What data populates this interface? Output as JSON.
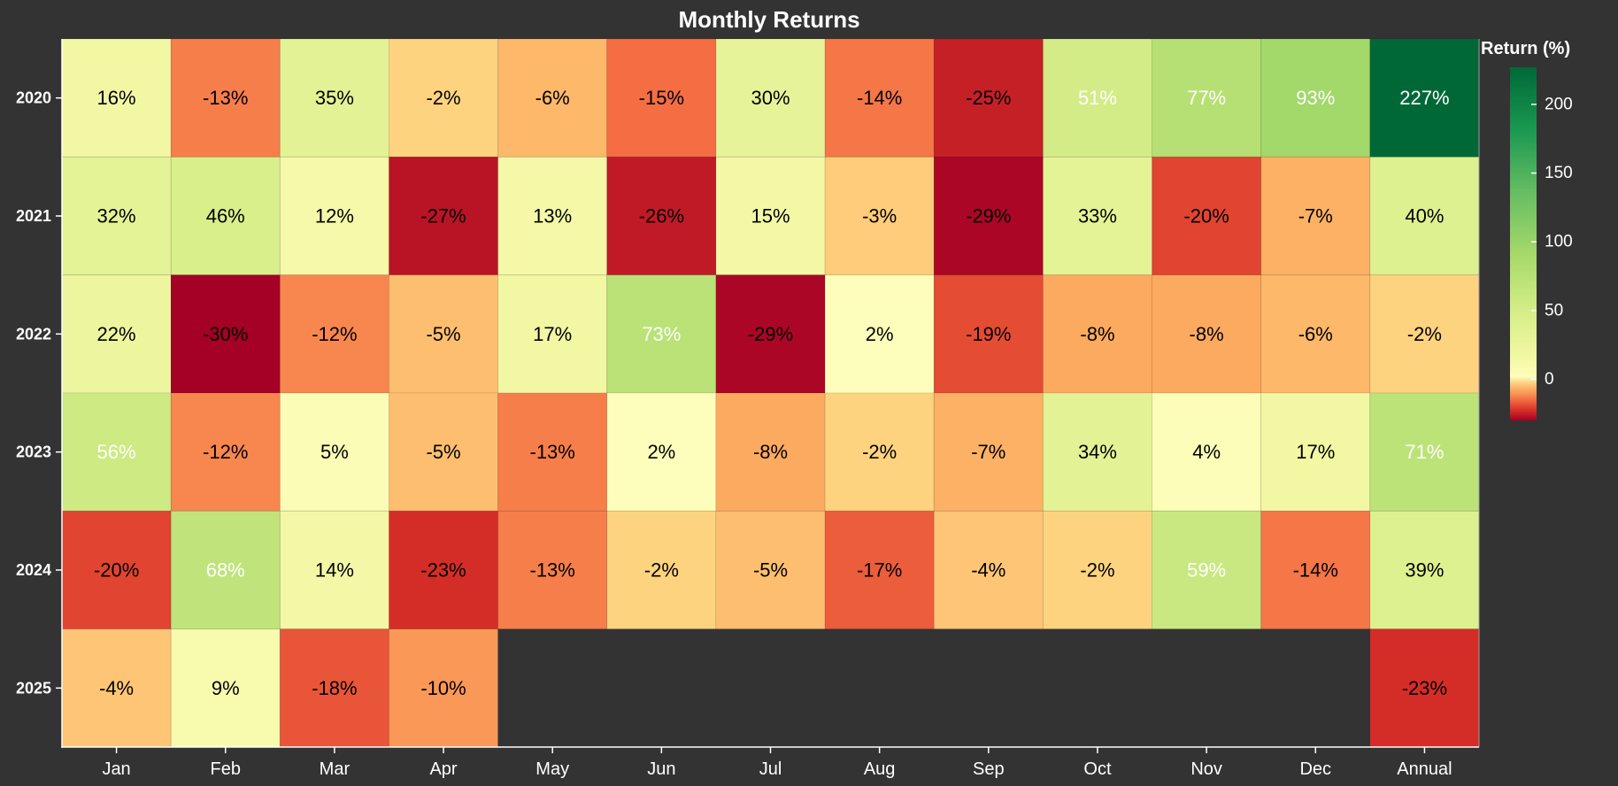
{
  "chart_data": {
    "type": "heatmap",
    "title": "Monthly Returns",
    "xlabel": "",
    "ylabel": "",
    "columns": [
      "Jan",
      "Feb",
      "Mar",
      "Apr",
      "May",
      "Jun",
      "Jul",
      "Aug",
      "Sep",
      "Oct",
      "Nov",
      "Dec",
      "Annual"
    ],
    "rows": [
      "2020",
      "2021",
      "2022",
      "2023",
      "2024",
      "2025"
    ],
    "values": [
      [
        16,
        -13,
        35,
        -2,
        -6,
        -15,
        30,
        -14,
        -25,
        51,
        77,
        93,
        227
      ],
      [
        32,
        46,
        12,
        -27,
        13,
        -26,
        15,
        -3,
        -29,
        33,
        -20,
        -7,
        40
      ],
      [
        22,
        -30,
        -12,
        -5,
        17,
        73,
        -29,
        2,
        -19,
        -8,
        -8,
        -6,
        -2
      ],
      [
        56,
        -12,
        5,
        -5,
        -13,
        2,
        -8,
        -2,
        -7,
        34,
        4,
        17,
        71
      ],
      [
        -20,
        68,
        14,
        -23,
        -13,
        -2,
        -5,
        -17,
        -4,
        -2,
        59,
        -14,
        39
      ],
      [
        -4,
        9,
        -18,
        -10,
        null,
        null,
        null,
        null,
        null,
        null,
        null,
        null,
        -23
      ]
    ],
    "value_suffix": "%",
    "color_scale": {
      "name": "RdYlGn",
      "domain": [
        -30,
        227
      ],
      "center": 0
    },
    "legend": {
      "title": "Return (%)",
      "ticks": [
        0,
        50,
        100,
        150,
        200
      ],
      "placement": "right"
    },
    "missing_color": "#333333",
    "background": "#333333",
    "grid": false
  }
}
